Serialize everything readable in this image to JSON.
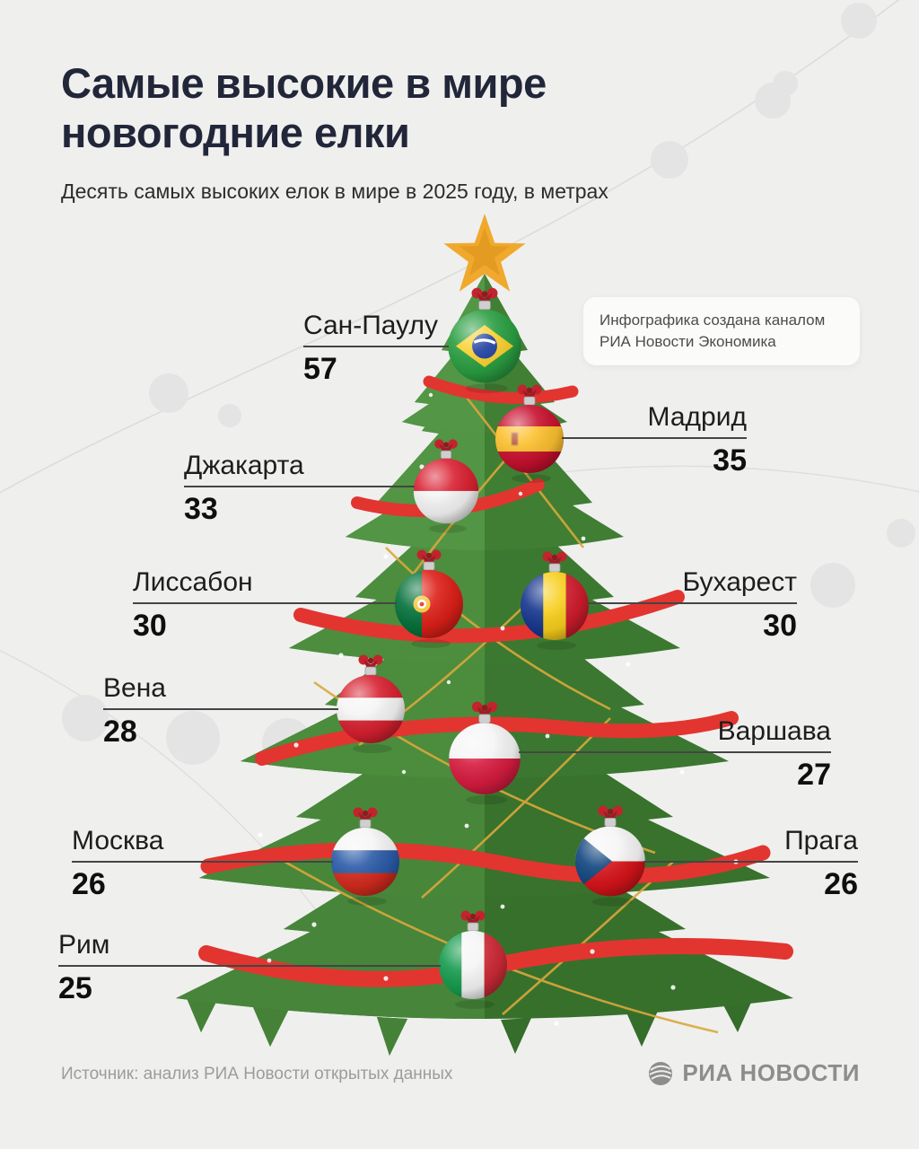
{
  "header": {
    "title": "Самые высокие в мире новогодние елки",
    "subtitle": "Десять самых высоких елок в мире в 2025 году, в метрах"
  },
  "note": {
    "line1": "Инфографика создана каналом",
    "line2": "РИА Новости Экономика"
  },
  "footer": {
    "source": "Источник: анализ РИА Новости открытых данных",
    "logo_text": "РИА НОВОСТИ"
  },
  "icons": {
    "tree": "christmas-tree",
    "star": "star-tree-topper",
    "ornament": "flag-bauble",
    "logo_globe": "ria-globe-icon"
  },
  "colors": {
    "background": "#efefee",
    "title_text": "#222639",
    "tree_green_light": "#4e9040",
    "tree_green_dark": "#3d7a30",
    "ribbon_red": "#e23530",
    "garland_gold": "#d9a83c",
    "star_gold": "#f0a92c",
    "label_text": "#1d1d1d",
    "source_text": "#9c9c9c"
  },
  "chart_data": {
    "type": "pictorial",
    "title": "Самые высокие в мире новогодние елки",
    "subtitle": "Десять самых высоких елок в мире в 2025 году, в метрах",
    "unit": "метры",
    "year": "2025",
    "items": [
      {
        "city": "Сан-Паулу",
        "value": 57,
        "flag": "brazil",
        "side": "left"
      },
      {
        "city": "Мадрид",
        "value": 35,
        "flag": "spain",
        "side": "right"
      },
      {
        "city": "Джакарта",
        "value": 33,
        "flag": "indonesia",
        "side": "left"
      },
      {
        "city": "Лиссабон",
        "value": 30,
        "flag": "portugal",
        "side": "left"
      },
      {
        "city": "Бухарест",
        "value": 30,
        "flag": "romania",
        "side": "right"
      },
      {
        "city": "Вена",
        "value": 28,
        "flag": "austria",
        "side": "left"
      },
      {
        "city": "Варшава",
        "value": 27,
        "flag": "poland",
        "side": "right"
      },
      {
        "city": "Москва",
        "value": 26,
        "flag": "russia",
        "side": "left"
      },
      {
        "city": "Прага",
        "value": 26,
        "flag": "czechia",
        "side": "right"
      },
      {
        "city": "Рим",
        "value": 25,
        "flag": "italy",
        "side": "left"
      }
    ]
  }
}
